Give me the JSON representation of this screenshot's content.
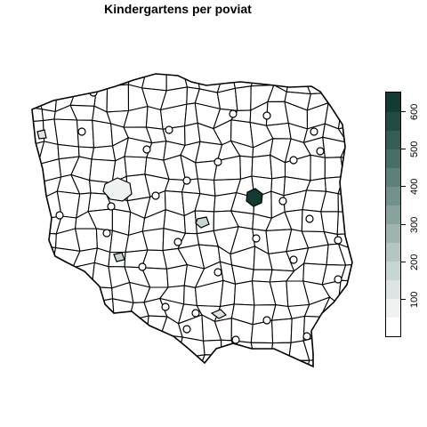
{
  "title": "Kindergartens per poviat",
  "legend": {
    "ticks": [
      {
        "value": 100,
        "label": "100"
      },
      {
        "value": 200,
        "label": "200"
      },
      {
        "value": 300,
        "label": "300"
      },
      {
        "value": 400,
        "label": "400"
      },
      {
        "value": 500,
        "label": "500"
      },
      {
        "value": 600,
        "label": "600"
      }
    ],
    "range": [
      0,
      650
    ],
    "bands": [
      "#ffffff",
      "#eef2f1",
      "#dce5e3",
      "#c8d6d3",
      "#b3c6c2",
      "#9db4b0",
      "#87a39e",
      "#71928c",
      "#5c817a",
      "#476f68",
      "#335d55",
      "#204c44",
      "#113b33"
    ]
  },
  "chart_data": {
    "type": "choropleth",
    "title": "Kindergartens per poviat",
    "region_unit": "poviat",
    "country": "Poland",
    "value_range": [
      0,
      650
    ],
    "highlighted_regions": [
      {
        "region": "dark region near center-east",
        "value": 640
      },
      {
        "region": "region in west-central",
        "value": 90
      },
      {
        "region": "region in central",
        "value": 160
      },
      {
        "region": "region in south-west",
        "value": 150
      },
      {
        "region": "region in south",
        "value": 110
      },
      {
        "region": "region in north-west",
        "value": 120
      }
    ]
  }
}
